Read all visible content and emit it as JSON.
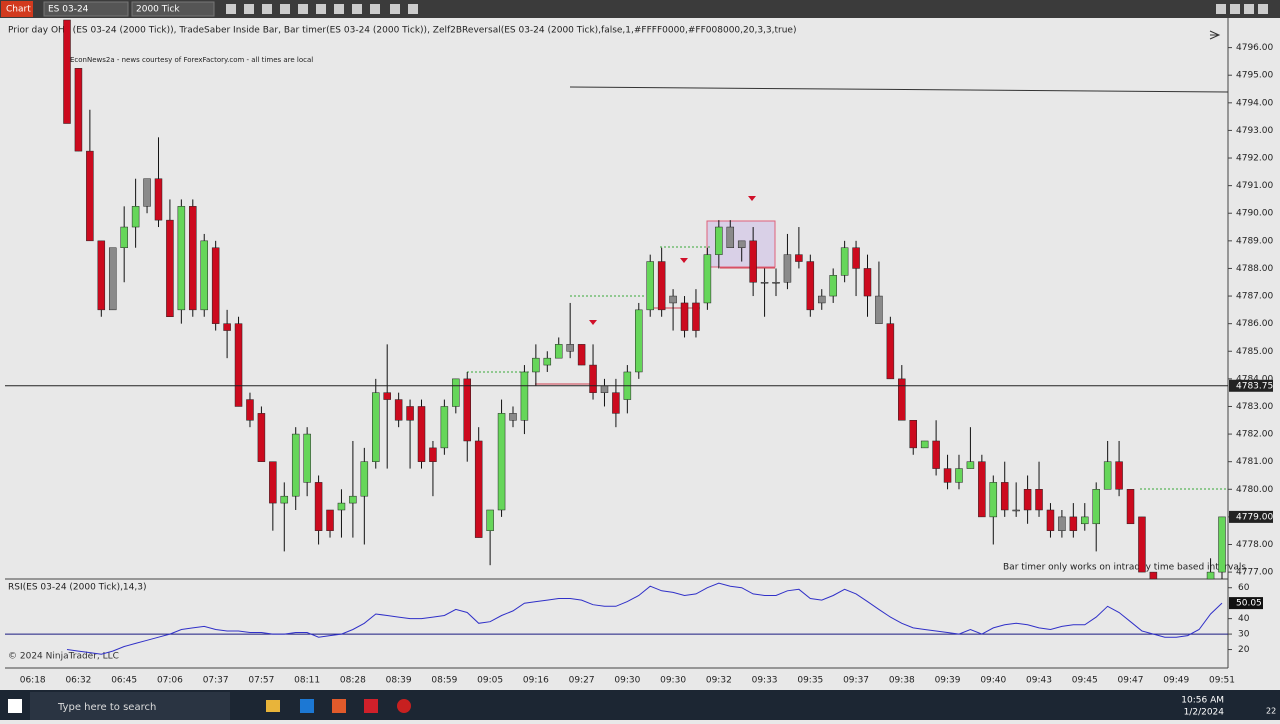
{
  "window": {
    "tab": "Chart",
    "instrument": "ES 03-24",
    "interval": "2000 Tick"
  },
  "chart_data": {
    "type": "candlestick",
    "title": "Prior day OHL (ES 03-24 (2000 Tick)), TradeSaber Inside Bar, Bar timer(ES 03-24 (2000 Tick)), Zelf2BReversal(ES 03-24 (2000 Tick),false,1,#FFFF0000,#FF008000,20,3,3,true)",
    "annotations": [
      "EconNews2a - news courtesy of ForexFactory.com - all times are local",
      "Bar timer only works on intraday time based intervals",
      "© 2024 NinjaTrader, LLC"
    ],
    "up_color": "#66d65a",
    "down_color": "#cc0a1e",
    "inside_bar_color": "#8a8a8a",
    "candles": [
      [
        4797.0,
        4797.0,
        4793.25,
        4793.25
      ],
      [
        4795.25,
        4795.25,
        4792.25,
        4792.25
      ],
      [
        4792.25,
        4793.75,
        4789.0,
        4789.0
      ],
      [
        4789.0,
        4789.0,
        4786.25,
        4786.5
      ],
      [
        4786.5,
        4788.75,
        4786.5,
        4788.75
      ],
      [
        4788.75,
        4790.25,
        4787.5,
        4789.5
      ],
      [
        4789.5,
        4791.25,
        4788.75,
        4790.25
      ],
      [
        4790.25,
        4791.25,
        4790.0,
        4791.25
      ],
      [
        4791.25,
        4792.75,
        4789.5,
        4789.75
      ],
      [
        4789.75,
        4790.5,
        4786.25,
        4786.25
      ],
      [
        4786.5,
        4790.5,
        4786.0,
        4790.25
      ],
      [
        4790.25,
        4790.5,
        4786.25,
        4786.5
      ],
      [
        4786.5,
        4789.25,
        4786.25,
        4789.0
      ],
      [
        4788.75,
        4789.0,
        4785.75,
        4786.0
      ],
      [
        4786.0,
        4786.5,
        4784.75,
        4785.75
      ],
      [
        4786.0,
        4786.25,
        4783.0,
        4783.0
      ],
      [
        4783.25,
        4783.5,
        4782.25,
        4782.5
      ],
      [
        4782.75,
        4783.0,
        4781.0,
        4781.0
      ],
      [
        4781.0,
        4781.0,
        4778.5,
        4779.5
      ],
      [
        4779.5,
        4780.25,
        4777.75,
        4779.75
      ],
      [
        4779.75,
        4782.25,
        4779.25,
        4782.0
      ],
      [
        4780.25,
        4782.25,
        4779.75,
        4782.0
      ],
      [
        4780.25,
        4780.5,
        4778.0,
        4778.5
      ],
      [
        4779.25,
        4779.25,
        4778.25,
        4778.5
      ],
      [
        4779.25,
        4780.0,
        4778.25,
        4779.5
      ],
      [
        4779.5,
        4781.75,
        4778.25,
        4779.75
      ],
      [
        4779.75,
        4781.5,
        4778.0,
        4781.0
      ],
      [
        4781.0,
        4784.0,
        4780.75,
        4783.5
      ],
      [
        4783.5,
        4785.25,
        4780.75,
        4783.25
      ],
      [
        4783.25,
        4783.5,
        4782.25,
        4782.5
      ],
      [
        4783.0,
        4783.25,
        4780.75,
        4782.5
      ],
      [
        4783.0,
        4783.25,
        4780.75,
        4781.0
      ],
      [
        4781.5,
        4781.75,
        4779.75,
        4781.0
      ],
      [
        4781.5,
        4783.25,
        4781.25,
        4783.0
      ],
      [
        4783.0,
        4784.0,
        4782.75,
        4784.0
      ],
      [
        4784.0,
        4784.25,
        4781.0,
        4781.75
      ],
      [
        4781.75,
        4782.25,
        4778.25,
        4778.25
      ],
      [
        4778.5,
        4779.25,
        4777.25,
        4779.25
      ],
      [
        4779.25,
        4783.25,
        4779.0,
        4782.75
      ],
      [
        4782.75,
        4783.0,
        4782.25,
        4782.5
      ],
      [
        4782.5,
        4784.5,
        4782.0,
        4784.25
      ],
      [
        4784.25,
        4785.25,
        4783.75,
        4784.75
      ],
      [
        4784.5,
        4785.0,
        4784.25,
        4784.75
      ],
      [
        4784.75,
        4785.5,
        4784.75,
        4785.25
      ],
      [
        4785.25,
        4786.75,
        4784.75,
        4785.0
      ],
      [
        4785.25,
        4785.25,
        4784.5,
        4784.5
      ],
      [
        4784.5,
        4785.25,
        4783.25,
        4783.5
      ],
      [
        4783.5,
        4784.0,
        4783.0,
        4783.75
      ],
      [
        4783.5,
        4784.0,
        4782.25,
        4782.75
      ],
      [
        4783.25,
        4784.5,
        4782.75,
        4784.25
      ],
      [
        4784.25,
        4786.75,
        4784.0,
        4786.5
      ],
      [
        4786.5,
        4788.5,
        4786.25,
        4788.25
      ],
      [
        4788.25,
        4788.75,
        4786.25,
        4786.5
      ],
      [
        4786.75,
        4787.25,
        4785.75,
        4787.0
      ],
      [
        4786.75,
        4787.0,
        4785.5,
        4785.75
      ],
      [
        4786.75,
        4787.25,
        4785.5,
        4785.75
      ],
      [
        4786.75,
        4788.75,
        4786.5,
        4788.5
      ],
      [
        4788.5,
        4789.75,
        4788.0,
        4789.5
      ],
      [
        4788.75,
        4789.75,
        4788.75,
        4789.5
      ],
      [
        4789.0,
        4789.0,
        4788.25,
        4788.75
      ],
      [
        4789.0,
        4789.5,
        4787.0,
        4787.5
      ],
      [
        4787.5,
        4788.0,
        4786.25,
        4787.5
      ],
      [
        4787.5,
        4788.0,
        4787.0,
        4787.5
      ],
      [
        4787.5,
        4789.25,
        4787.25,
        4788.5
      ],
      [
        4788.5,
        4789.5,
        4788.0,
        4788.25
      ],
      [
        4788.25,
        4788.5,
        4786.25,
        4786.5
      ],
      [
        4786.75,
        4787.25,
        4786.5,
        4787.0
      ],
      [
        4787.0,
        4788.0,
        4786.75,
        4787.75
      ],
      [
        4787.75,
        4789.0,
        4787.5,
        4788.75
      ],
      [
        4788.75,
        4789.0,
        4787.0,
        4788.0
      ],
      [
        4788.0,
        4788.5,
        4786.25,
        4787.0
      ],
      [
        4787.0,
        4788.25,
        4786.0,
        4786.0
      ],
      [
        4786.0,
        4786.25,
        4784.0,
        4784.0
      ],
      [
        4784.0,
        4784.5,
        4782.5,
        4782.5
      ],
      [
        4782.5,
        4782.5,
        4781.25,
        4781.5
      ],
      [
        4781.5,
        4781.75,
        4781.5,
        4781.75
      ],
      [
        4781.75,
        4782.5,
        4780.5,
        4780.75
      ],
      [
        4780.75,
        4781.25,
        4780.0,
        4780.25
      ],
      [
        4780.25,
        4781.25,
        4780.0,
        4780.75
      ],
      [
        4780.75,
        4782.25,
        4780.75,
        4781.0
      ],
      [
        4781.0,
        4781.25,
        4779.0,
        4779.0
      ],
      [
        4779.0,
        4780.5,
        4778.0,
        4780.25
      ],
      [
        4780.25,
        4781.0,
        4779.0,
        4779.25
      ],
      [
        4779.25,
        4780.25,
        4779.0,
        4779.25
      ],
      [
        4780.0,
        4780.5,
        4778.75,
        4779.25
      ],
      [
        4780.0,
        4781.0,
        4779.0,
        4779.25
      ],
      [
        4779.25,
        4779.5,
        4778.25,
        4778.5
      ],
      [
        4779.0,
        4779.25,
        4778.25,
        4778.5
      ],
      [
        4779.0,
        4779.5,
        4778.25,
        4778.5
      ],
      [
        4778.75,
        4779.5,
        4778.5,
        4779.0
      ],
      [
        4778.75,
        4780.25,
        4777.75,
        4780.0
      ],
      [
        4780.0,
        4781.75,
        4780.0,
        4781.0
      ],
      [
        4781.0,
        4781.75,
        4779.75,
        4780.0
      ],
      [
        4780.0,
        4780.0,
        4778.75,
        4778.75
      ],
      [
        4779.0,
        4779.0,
        4777.0,
        4777.0
      ],
      [
        4777.0,
        4777.0,
        4776.75,
        4776.75
      ],
      null,
      null,
      null,
      null,
      [
        4776.75,
        4777.5,
        4776.75,
        4777.0
      ],
      [
        4777.0,
        4779.0,
        4776.75,
        4779.0
      ]
    ],
    "inside_bars": [
      4,
      7,
      39,
      44,
      47,
      53,
      58,
      59,
      61,
      62,
      63,
      66,
      71,
      83,
      87
    ],
    "ylim": [
      4776.75,
      4797.0
    ],
    "yticks": [
      {
        "value": 4777,
        "label": "4777.00"
      },
      {
        "value": 4778,
        "label": "4778.00"
      },
      {
        "value": 4779,
        "label": "4779.00"
      },
      {
        "value": 4780,
        "label": "4780.00"
      },
      {
        "value": 4781,
        "label": "4781.00"
      },
      {
        "value": 4782,
        "label": "4782.00"
      },
      {
        "value": 4783,
        "label": "4783.00"
      },
      {
        "value": 4784,
        "label": "4784.00"
      },
      {
        "value": 4785,
        "label": "4785.00"
      },
      {
        "value": 4786,
        "label": "4786.00"
      },
      {
        "value": 4787,
        "label": "4787.00"
      },
      {
        "value": 4788,
        "label": "4788.00"
      },
      {
        "value": 4789,
        "label": "4789.00"
      },
      {
        "value": 4790,
        "label": "4790.00"
      },
      {
        "value": 4791,
        "label": "4791.00"
      },
      {
        "value": 4792,
        "label": "4792.00"
      },
      {
        "value": 4793,
        "label": "4793.00"
      },
      {
        "value": 4794,
        "label": "4794.00"
      },
      {
        "value": 4795,
        "label": "4795.00"
      },
      {
        "value": 4796,
        "label": "4796.00"
      }
    ],
    "price_markers": [
      {
        "value": 4783.75,
        "label": "4783.75",
        "color": "#222222"
      },
      {
        "value": 4779,
        "label": "4779.00",
        "color": "#222222"
      }
    ],
    "xtick_labels": [
      "06:18",
      "06:32",
      "06:45",
      "07:06",
      "07:37",
      "07:57",
      "08:11",
      "08:28",
      "08:39",
      "08:59",
      "09:05",
      "09:16",
      "09:27",
      "09:30",
      "09:30",
      "09:32",
      "09:33",
      "09:35",
      "09:37",
      "09:38",
      "09:39",
      "09:40",
      "09:43",
      "09:45",
      "09:47",
      "09:49",
      "09:51"
    ],
    "indicator": {
      "name": "RSI(ES 03-24 (2000 Tick),14,3)",
      "color": "#3030c8",
      "level": 30,
      "ylim": [
        10,
        65
      ],
      "yticks": [
        60,
        40,
        30,
        20
      ],
      "values": [
        20,
        19,
        18,
        17,
        19,
        22,
        24,
        26,
        28,
        30,
        33,
        34,
        35,
        33,
        32,
        32,
        31,
        31,
        30,
        30,
        31,
        31,
        28,
        29,
        30,
        33,
        37,
        43,
        42,
        41,
        40,
        40,
        41,
        42,
        46,
        44,
        37,
        38,
        42,
        45,
        50,
        51,
        52,
        53,
        53,
        52,
        49,
        48,
        48,
        51,
        55,
        61,
        58,
        57,
        55,
        56,
        60,
        63,
        61,
        60,
        56,
        55,
        55,
        58,
        59,
        53,
        52,
        55,
        59,
        56,
        51,
        46,
        41,
        37,
        34,
        33,
        32,
        31,
        30,
        33,
        30,
        34,
        36,
        37,
        36,
        34,
        33,
        35,
        36,
        36,
        41,
        48,
        44,
        38,
        32,
        30,
        28,
        28,
        29,
        33,
        43,
        50.05
      ]
    }
  },
  "taskbar": {
    "search": "Type here to search",
    "time": "10:56 AM",
    "date": "1/2/2024",
    "badge": "22"
  }
}
